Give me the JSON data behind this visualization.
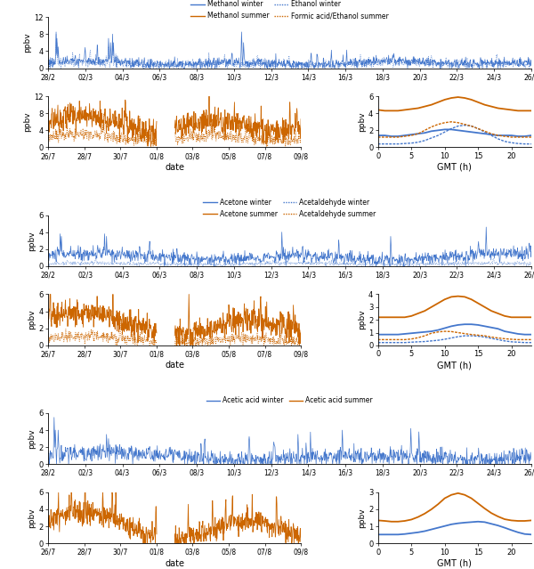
{
  "blue": "#4477CC",
  "orange": "#CC6600",
  "panels": [
    {
      "legend_items": [
        [
          "Methanol winter",
          "solid",
          "blue"
        ],
        [
          "Methanol summer",
          "solid",
          "orange"
        ],
        [
          "Ethanol winter",
          "dotted",
          "blue"
        ],
        [
          "Formic acid/Ethanol summer",
          "dotted",
          "orange"
        ]
      ],
      "winter_ylim": [
        0,
        12
      ],
      "winter_yticks": [
        0,
        4,
        8,
        12
      ],
      "summer_ylim": [
        0,
        12
      ],
      "summer_yticks": [
        0,
        4,
        8,
        12
      ],
      "daily_ylim": [
        0,
        6
      ],
      "daily_yticks": [
        0,
        2,
        4,
        6
      ],
      "winter_xticks": [
        "28/2",
        "02/3",
        "04/3",
        "06/3",
        "08/3",
        "10/3",
        "12/3",
        "14/3",
        "16/3",
        "18/3",
        "20/3",
        "22/3",
        "24/3",
        "26/3"
      ],
      "summer_xticks": [
        "26/7",
        "28/7",
        "30/7",
        "01/8",
        "03/8",
        "05/8",
        "07/8",
        "09/8"
      ],
      "daily_solid_winter": [
        1.4,
        1.4,
        1.3,
        1.3,
        1.4,
        1.5,
        1.6,
        1.7,
        1.9,
        2.0,
        2.1,
        2.1,
        2.0,
        1.9,
        1.8,
        1.7,
        1.6,
        1.5,
        1.4,
        1.4,
        1.4,
        1.3,
        1.3,
        1.4
      ],
      "daily_dotted_winter": [
        0.4,
        0.4,
        0.4,
        0.4,
        0.45,
        0.5,
        0.6,
        0.8,
        1.1,
        1.4,
        1.8,
        2.2,
        2.5,
        2.6,
        2.5,
        2.2,
        1.8,
        1.4,
        1.0,
        0.7,
        0.55,
        0.45,
        0.4,
        0.4
      ],
      "daily_solid_summer": [
        4.4,
        4.3,
        4.3,
        4.3,
        4.4,
        4.5,
        4.6,
        4.8,
        5.0,
        5.3,
        5.6,
        5.8,
        5.9,
        5.8,
        5.6,
        5.3,
        5.0,
        4.8,
        4.6,
        4.5,
        4.4,
        4.3,
        4.3,
        4.3
      ],
      "daily_dotted_summer": [
        1.2,
        1.2,
        1.2,
        1.2,
        1.3,
        1.4,
        1.6,
        2.0,
        2.4,
        2.7,
        2.9,
        3.0,
        2.9,
        2.7,
        2.5,
        2.2,
        1.9,
        1.6,
        1.4,
        1.3,
        1.2,
        1.2,
        1.2,
        1.2
      ]
    },
    {
      "legend_items": [
        [
          "Acetone winter",
          "solid",
          "blue"
        ],
        [
          "Acetone summer",
          "solid",
          "orange"
        ],
        [
          "Acetaldehyde winter",
          "dotted",
          "blue"
        ],
        [
          "Acetaldehyde summer",
          "dotted",
          "orange"
        ]
      ],
      "winter_ylim": [
        0,
        6
      ],
      "winter_yticks": [
        0,
        2,
        4,
        6
      ],
      "summer_ylim": [
        0,
        6
      ],
      "summer_yticks": [
        0,
        2,
        4,
        6
      ],
      "daily_ylim": [
        0,
        4
      ],
      "daily_yticks": [
        0,
        1,
        2,
        3,
        4
      ],
      "winter_xticks": [
        "28/2",
        "02/3",
        "04/3",
        "06/3",
        "08/3",
        "10/3",
        "12/3",
        "14/3",
        "16/3",
        "18/3",
        "20/3",
        "22/3",
        "24/3",
        "26/3"
      ],
      "summer_xticks": [
        "26/7",
        "28/7",
        "30/7",
        "01/8",
        "03/8",
        "05/8",
        "07/8",
        "09/8"
      ],
      "daily_solid_winter": [
        0.85,
        0.85,
        0.85,
        0.85,
        0.9,
        0.95,
        1.0,
        1.05,
        1.1,
        1.2,
        1.35,
        1.5,
        1.6,
        1.65,
        1.65,
        1.6,
        1.5,
        1.4,
        1.3,
        1.1,
        1.0,
        0.9,
        0.85,
        0.85
      ],
      "daily_dotted_winter": [
        0.22,
        0.22,
        0.22,
        0.22,
        0.22,
        0.25,
        0.28,
        0.3,
        0.35,
        0.4,
        0.48,
        0.58,
        0.68,
        0.75,
        0.75,
        0.72,
        0.65,
        0.55,
        0.45,
        0.35,
        0.28,
        0.25,
        0.22,
        0.22
      ],
      "daily_solid_summer": [
        2.2,
        2.2,
        2.2,
        2.2,
        2.2,
        2.3,
        2.5,
        2.7,
        3.0,
        3.3,
        3.6,
        3.8,
        3.85,
        3.8,
        3.6,
        3.3,
        3.0,
        2.7,
        2.5,
        2.3,
        2.2,
        2.2,
        2.2,
        2.2
      ],
      "daily_dotted_summer": [
        0.45,
        0.45,
        0.45,
        0.45,
        0.45,
        0.5,
        0.6,
        0.75,
        0.95,
        1.05,
        1.1,
        1.08,
        1.0,
        0.92,
        0.85,
        0.8,
        0.75,
        0.65,
        0.58,
        0.52,
        0.48,
        0.45,
        0.45,
        0.45
      ]
    },
    {
      "legend_items": [
        [
          "Acetic acid winter",
          "solid",
          "blue"
        ],
        [
          "Acetic acid summer",
          "solid",
          "orange"
        ]
      ],
      "winter_ylim": [
        0,
        6
      ],
      "winter_yticks": [
        0,
        2,
        4,
        6
      ],
      "summer_ylim": [
        0,
        6
      ],
      "summer_yticks": [
        0,
        2,
        4,
        6
      ],
      "daily_ylim": [
        0,
        3
      ],
      "daily_yticks": [
        0,
        1,
        2,
        3
      ],
      "winter_xticks": [
        "28/2",
        "02/3",
        "04/3",
        "06/3",
        "08/3",
        "10/3",
        "12/3",
        "14/3",
        "16/3",
        "18/3",
        "20/3",
        "22/3",
        "24/3",
        "26/3"
      ],
      "summer_xticks": [
        "26/7",
        "28/7",
        "30/7",
        "01/8",
        "03/8",
        "05/8",
        "07/8",
        "09/8"
      ],
      "daily_solid_winter": [
        0.52,
        0.52,
        0.52,
        0.52,
        0.55,
        0.6,
        0.65,
        0.72,
        0.82,
        0.92,
        1.02,
        1.12,
        1.18,
        1.22,
        1.25,
        1.28,
        1.25,
        1.15,
        1.05,
        0.92,
        0.78,
        0.65,
        0.55,
        0.52
      ],
      "daily_dotted_winter": null,
      "daily_solid_summer": [
        1.35,
        1.32,
        1.28,
        1.28,
        1.32,
        1.4,
        1.55,
        1.75,
        2.0,
        2.3,
        2.65,
        2.85,
        2.95,
        2.85,
        2.65,
        2.35,
        2.05,
        1.78,
        1.58,
        1.42,
        1.35,
        1.32,
        1.32,
        1.35
      ],
      "daily_dotted_summer": null
    }
  ],
  "daily_x": [
    0,
    1,
    2,
    3,
    4,
    5,
    6,
    7,
    8,
    9,
    10,
    11,
    12,
    13,
    14,
    15,
    16,
    17,
    18,
    19,
    20,
    21,
    22,
    23
  ]
}
